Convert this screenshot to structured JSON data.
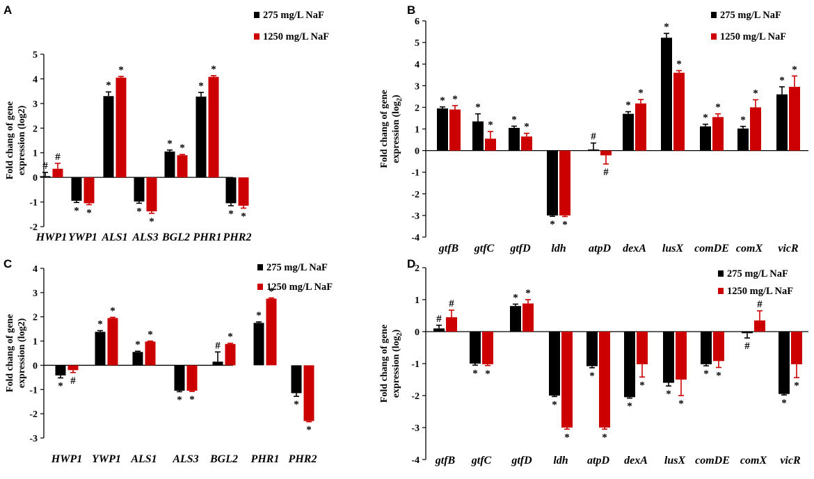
{
  "legend": {
    "s1": "275 mg/L NaF",
    "s2": "1250 mg/L NaF"
  },
  "colors": {
    "s1": "#000000",
    "s2": "#cc0000",
    "axis": "#000000"
  },
  "chart_data": [
    {
      "panel": "A",
      "type": "bar",
      "ylabel_line1": "Fold chang of gene",
      "ylabel_line2": "expression (log2)",
      "ylim": [
        -2,
        5
      ],
      "yticks": [
        "-2",
        "-1",
        "0",
        "1",
        "2",
        "3",
        "4",
        "5"
      ],
      "categories": [
        "HWP1",
        "YWP1",
        "ALS1",
        "ALS3",
        "BGL2",
        "PHR1",
        "PHR2"
      ],
      "series": [
        {
          "name": "275 mg/L NaF",
          "values": [
            0.05,
            -0.95,
            3.3,
            -0.98,
            1.05,
            3.28,
            -1.05
          ],
          "errors": [
            0.15,
            0.07,
            0.17,
            0.07,
            0.06,
            0.17,
            0.1
          ],
          "marks": [
            "#",
            "*",
            "*",
            "*",
            "*",
            "*",
            "*"
          ]
        },
        {
          "name": "1250 mg/L NaF",
          "values": [
            0.35,
            -1.05,
            4.05,
            -1.38,
            0.9,
            4.08,
            -1.15
          ],
          "errors": [
            0.22,
            0.06,
            0.05,
            0.08,
            0.03,
            0.05,
            0.1
          ],
          "marks": [
            "#",
            "*",
            "*",
            "*",
            "*",
            "*",
            "*"
          ]
        }
      ]
    },
    {
      "panel": "B",
      "type": "bar",
      "ylabel_line1": "Fold chang of gene",
      "ylabel_line2": "expression (log",
      "ylabel_sub": "2",
      "ylabel_close": ")",
      "ylim": [
        -4,
        6
      ],
      "yticks": [
        "-4",
        "-3",
        "-2",
        "-1",
        "0",
        "1",
        "2",
        "3",
        "4",
        "5",
        "6"
      ],
      "categories": [
        "gtfB",
        "gtfC",
        "gtfD",
        "ldh",
        "atpD",
        "dexA",
        "lusX",
        "comDE",
        "comX",
        "vicR"
      ],
      "series": [
        {
          "name": "275 mg/L NaF",
          "values": [
            1.95,
            1.35,
            1.05,
            -3.0,
            0.05,
            1.7,
            5.22,
            1.12,
            1.02,
            2.6
          ],
          "errors": [
            0.07,
            0.35,
            0.08,
            0.04,
            0.3,
            0.1,
            0.2,
            0.1,
            0.1,
            0.35
          ],
          "marks": [
            "*",
            "*",
            "*",
            "*",
            "#",
            "*",
            "*",
            "*",
            "*",
            "*"
          ]
        },
        {
          "name": "1250 mg/L NaF",
          "values": [
            1.9,
            0.55,
            0.65,
            -3.0,
            -0.22,
            2.18,
            3.6,
            1.55,
            2.0,
            2.95
          ],
          "errors": [
            0.18,
            0.33,
            0.15,
            0.05,
            0.4,
            0.18,
            0.1,
            0.15,
            0.35,
            0.5
          ],
          "marks": [
            "*",
            "*",
            "*",
            "*",
            "#",
            "*",
            "*",
            "*",
            "*",
            "*"
          ]
        }
      ]
    },
    {
      "panel": "C",
      "type": "bar",
      "ylabel_line1": "Fold chang of gene",
      "ylabel_line2": "expression (log2)",
      "ylim": [
        -3,
        4
      ],
      "yticks": [
        "-3",
        "-2",
        "-1",
        "0",
        "1",
        "2",
        "3",
        "4"
      ],
      "categories": [
        "HWP1",
        "YWP1",
        "ALS1",
        "ALS3",
        "BGL2",
        "PHR1",
        "PHR2"
      ],
      "series": [
        {
          "name": "275 mg/L NaF",
          "values": [
            -0.42,
            1.38,
            0.55,
            -1.05,
            0.15,
            1.75,
            -1.15
          ],
          "errors": [
            0.1,
            0.05,
            0.03,
            0.04,
            0.4,
            0.04,
            0.13
          ],
          "marks": [
            "*",
            "*",
            "*",
            "*",
            "#",
            "*",
            "*"
          ]
        },
        {
          "name": "1250 mg/L NaF",
          "values": [
            -0.2,
            1.95,
            0.98,
            -1.05,
            0.88,
            2.75,
            -2.3
          ],
          "errors": [
            0.1,
            0.03,
            0.02,
            0.03,
            0.03,
            0.03,
            0.03
          ],
          "marks": [
            "#",
            "*",
            "*",
            "*",
            "*",
            "*",
            "*"
          ]
        }
      ]
    },
    {
      "panel": "D",
      "type": "bar",
      "ylabel_line1": "Fold chang of gene",
      "ylabel_line2": "expression (log",
      "ylabel_sub": "2",
      "ylabel_close": ")",
      "ylim": [
        -4,
        2
      ],
      "yticks": [
        "-4",
        "-3",
        "-2",
        "-1",
        "0",
        "1",
        "2"
      ],
      "categories": [
        "gtfB",
        "gtfC",
        "gtfD",
        "ldh",
        "atpD",
        "dexA",
        "lusX",
        "comDE",
        "comX",
        "vicR"
      ],
      "series": [
        {
          "name": "275 mg/L NaF",
          "values": [
            0.1,
            -1.0,
            0.8,
            -2.0,
            -1.08,
            -2.05,
            -1.6,
            -1.02,
            -0.05,
            -1.95
          ],
          "errors": [
            0.1,
            0.05,
            0.06,
            0.03,
            0.05,
            0.03,
            0.1,
            0.05,
            0.15,
            0.03
          ],
          "marks": [
            "#",
            "*",
            "*",
            "*",
            "*",
            "*",
            "*",
            "*",
            "#",
            "*"
          ]
        },
        {
          "name": "1250 mg/L NaF",
          "values": [
            0.45,
            -1.02,
            0.88,
            -3.0,
            -3.0,
            -1.02,
            -1.5,
            -0.92,
            0.35,
            -1.02
          ],
          "errors": [
            0.22,
            0.04,
            0.12,
            0.05,
            0.05,
            0.4,
            0.5,
            0.2,
            0.3,
            0.42
          ],
          "marks": [
            "#",
            "*",
            "*",
            "*",
            "*",
            "*",
            "*",
            "*",
            "#",
            "*"
          ]
        }
      ]
    }
  ]
}
